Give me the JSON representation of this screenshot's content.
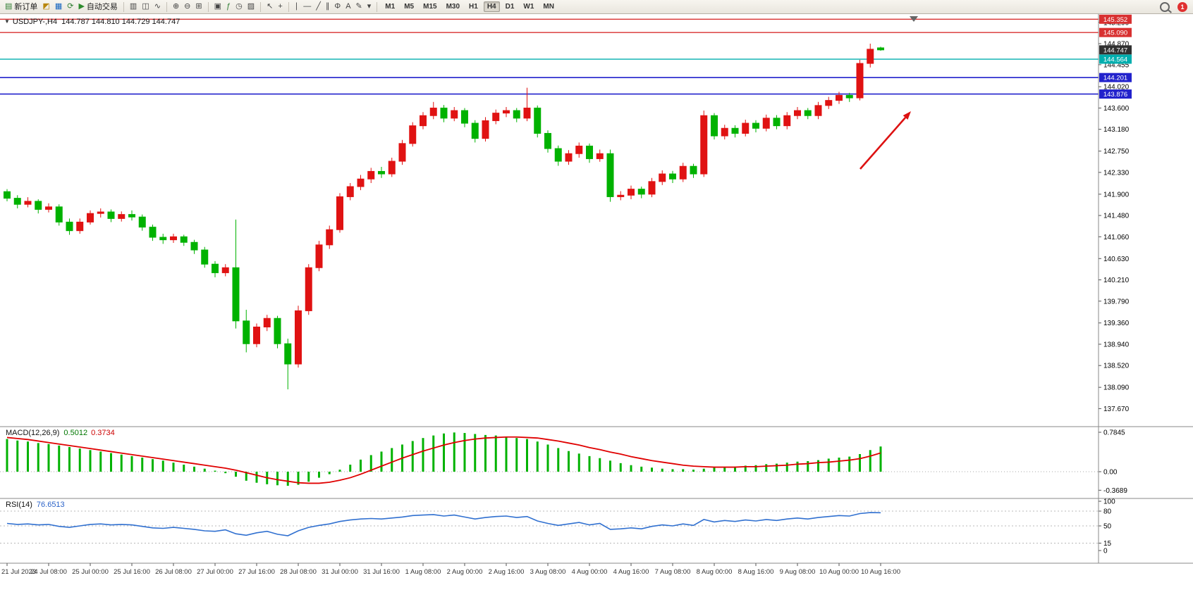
{
  "icons": {
    "collapse": "▼"
  },
  "toolbar": {
    "groups": [
      {
        "items": [
          {
            "name": "new-order-button",
            "glyph": "▤",
            "color": "#2e7d32",
            "label": "新订单"
          },
          {
            "name": "chart-window-icon",
            "glyph": "◩",
            "color": "#b8860b"
          },
          {
            "name": "market-watch-icon",
            "glyph": "▦",
            "color": "#1565c0"
          },
          {
            "name": "refresh-icon",
            "glyph": "⟳",
            "color": "#2e7d32"
          },
          {
            "name": "autotrading-button",
            "glyph": "▶",
            "color": "#2e8b2e",
            "label": "自动交易"
          }
        ]
      },
      {
        "items": [
          {
            "name": "bar-chart-icon",
            "glyph": "▥",
            "color": "#444"
          },
          {
            "name": "candlestick-chart-icon",
            "glyph": "◫",
            "color": "#444"
          },
          {
            "name": "line-chart-icon",
            "glyph": "∿",
            "color": "#444"
          }
        ]
      },
      {
        "items": [
          {
            "name": "zoom-in-icon",
            "glyph": "⊕",
            "color": "#444"
          },
          {
            "name": "zoom-out-icon",
            "glyph": "⊖",
            "color": "#444"
          },
          {
            "name": "tile-windows-icon",
            "glyph": "⊞",
            "color": "#444"
          }
        ]
      },
      {
        "items": [
          {
            "name": "new-chart-icon",
            "glyph": "▣",
            "color": "#444"
          },
          {
            "name": "indicators-icon",
            "glyph": "ƒ",
            "color": "#2e7d32"
          },
          {
            "name": "periods-icon",
            "glyph": "◷",
            "color": "#444"
          },
          {
            "name": "templates-icon",
            "glyph": "▨",
            "color": "#444"
          }
        ]
      },
      {
        "items": [
          {
            "name": "cursor-icon",
            "glyph": "↖",
            "color": "#444"
          },
          {
            "name": "crosshair-icon",
            "glyph": "+",
            "color": "#444"
          }
        ]
      },
      {
        "items": [
          {
            "name": "vertical-line-icon",
            "glyph": "∣",
            "color": "#444"
          },
          {
            "name": "horizontal-line-icon",
            "glyph": "―",
            "color": "#444"
          },
          {
            "name": "trendline-icon",
            "glyph": "╱",
            "color": "#444"
          },
          {
            "name": "channel-icon",
            "glyph": "∥",
            "color": "#444"
          },
          {
            "name": "fibonacci-icon",
            "glyph": "Φ",
            "color": "#444"
          },
          {
            "name": "text-icon",
            "glyph": "A",
            "color": "#444"
          },
          {
            "name": "arrows-icon",
            "glyph": "✎",
            "color": "#444"
          },
          {
            "name": "objects-dropdown-icon",
            "glyph": "▾",
            "color": "#444"
          }
        ]
      }
    ],
    "timeframes": {
      "items": [
        "M1",
        "M5",
        "M15",
        "M30",
        "H1",
        "H4",
        "D1",
        "W1",
        "MN"
      ],
      "active": "H4"
    },
    "right": {
      "search_name": "search-button",
      "badge_value": "1"
    }
  },
  "chart_data": {
    "type": "candlestick",
    "symbol_title": "USDJPY-,H4",
    "title_ohlc": "144.787 144.810 144.729 144.747",
    "colors": {
      "up": "#E01212",
      "down": "#00B200"
    },
    "y_ticks": [
      "145.290",
      "144.870",
      "144.455",
      "144.020",
      "143.600",
      "143.180",
      "142.750",
      "142.330",
      "141.900",
      "141.480",
      "141.060",
      "140.630",
      "140.210",
      "139.790",
      "139.360",
      "138.940",
      "138.520",
      "138.090",
      "137.670"
    ],
    "levels": [
      {
        "label": "145.352",
        "color": "#D83030",
        "width": 1.4
      },
      {
        "label": "145.090",
        "color": "#D83030",
        "width": 1.4
      },
      {
        "label": "144.564",
        "color": "#00AEAE",
        "width": 1.4
      },
      {
        "label": "144.201",
        "color": "#2222CC",
        "width": 1.7
      },
      {
        "label": "143.876",
        "color": "#2222CC",
        "width": 1.7
      }
    ],
    "current_price": {
      "label": "144.747",
      "bg": "#303030"
    },
    "arrow": {
      "from": [
        1220,
        240
      ],
      "to": [
        1292,
        158
      ],
      "color": "#DD1111"
    },
    "times": {
      "per_label_candles": 4,
      "labels": [
        "21 Jul 2023",
        "24 Jul 08:00",
        "25 Jul 00:00",
        "25 Jul 16:00",
        "26 Jul 08:00",
        "27 Jul 00:00",
        "27 Jul 16:00",
        "28 Jul 08:00",
        "31 Jul 00:00",
        "31 Jul 16:00",
        "1 Aug 08:00",
        "2 Aug 00:00",
        "2 Aug 16:00",
        "3 Aug 08:00",
        "4 Aug 00:00",
        "4 Aug 16:00",
        "7 Aug 08:00",
        "8 Aug 00:00",
        "8 Aug 16:00",
        "9 Aug 08:00",
        "10 Aug 00:00",
        "10 Aug 16:00"
      ]
    },
    "candles": [
      [
        141.95,
        142.0,
        141.76,
        141.82
      ],
      [
        141.82,
        141.88,
        141.62,
        141.7
      ],
      [
        141.7,
        141.84,
        141.64,
        141.76
      ],
      [
        141.76,
        141.8,
        141.52,
        141.6
      ],
      [
        141.6,
        141.72,
        141.54,
        141.65
      ],
      [
        141.65,
        141.7,
        141.28,
        141.35
      ],
      [
        141.35,
        141.42,
        141.1,
        141.18
      ],
      [
        141.18,
        141.42,
        141.12,
        141.35
      ],
      [
        141.35,
        141.58,
        141.3,
        141.52
      ],
      [
        141.52,
        141.62,
        141.44,
        141.55
      ],
      [
        141.55,
        141.6,
        141.35,
        141.42
      ],
      [
        141.42,
        141.56,
        141.36,
        141.5
      ],
      [
        141.5,
        141.58,
        141.38,
        141.45
      ],
      [
        141.45,
        141.5,
        141.18,
        141.25
      ],
      [
        141.25,
        141.3,
        140.98,
        141.05
      ],
      [
        141.05,
        141.12,
        140.92,
        141.0
      ],
      [
        141.0,
        141.12,
        140.94,
        141.06
      ],
      [
        141.06,
        141.1,
        140.88,
        140.95
      ],
      [
        140.95,
        141.0,
        140.72,
        140.8
      ],
      [
        140.8,
        140.86,
        140.45,
        140.52
      ],
      [
        140.52,
        140.58,
        140.26,
        140.35
      ],
      [
        140.35,
        140.52,
        140.28,
        140.45
      ],
      [
        140.45,
        141.4,
        139.25,
        139.4
      ],
      [
        139.4,
        139.62,
        138.78,
        138.95
      ],
      [
        138.95,
        139.35,
        138.88,
        139.28
      ],
      [
        139.28,
        139.52,
        139.2,
        139.45
      ],
      [
        139.45,
        139.5,
        138.86,
        138.95
      ],
      [
        138.95,
        139.05,
        138.05,
        138.55
      ],
      [
        138.55,
        139.7,
        138.48,
        139.6
      ],
      [
        139.6,
        140.52,
        139.52,
        140.45
      ],
      [
        140.45,
        140.98,
        140.38,
        140.9
      ],
      [
        140.9,
        141.28,
        140.82,
        141.2
      ],
      [
        141.2,
        141.92,
        141.14,
        141.85
      ],
      [
        141.85,
        142.12,
        141.78,
        142.05
      ],
      [
        142.05,
        142.28,
        141.98,
        142.2
      ],
      [
        142.2,
        142.42,
        142.12,
        142.35
      ],
      [
        142.35,
        142.44,
        142.22,
        142.3
      ],
      [
        142.3,
        142.62,
        142.24,
        142.55
      ],
      [
        142.55,
        142.97,
        142.48,
        142.9
      ],
      [
        142.9,
        143.32,
        142.84,
        143.25
      ],
      [
        143.25,
        143.52,
        143.18,
        143.45
      ],
      [
        143.45,
        143.72,
        143.38,
        143.6
      ],
      [
        143.6,
        143.66,
        143.32,
        143.4
      ],
      [
        143.4,
        143.62,
        143.34,
        143.55
      ],
      [
        143.55,
        143.6,
        143.22,
        143.3
      ],
      [
        143.3,
        143.36,
        142.92,
        143.0
      ],
      [
        143.0,
        143.42,
        142.94,
        143.35
      ],
      [
        143.35,
        143.57,
        143.28,
        143.5
      ],
      [
        143.5,
        143.62,
        143.42,
        143.55
      ],
      [
        143.55,
        143.6,
        143.32,
        143.4
      ],
      [
        143.4,
        144.0,
        143.34,
        143.6
      ],
      [
        143.6,
        143.65,
        143.02,
        143.1
      ],
      [
        143.1,
        143.16,
        142.72,
        142.8
      ],
      [
        142.8,
        142.86,
        142.46,
        142.55
      ],
      [
        142.55,
        142.77,
        142.48,
        142.7
      ],
      [
        142.7,
        142.92,
        142.62,
        142.85
      ],
      [
        142.85,
        142.9,
        142.52,
        142.6
      ],
      [
        142.6,
        142.78,
        142.54,
        142.7
      ],
      [
        142.7,
        142.78,
        141.75,
        141.85
      ],
      [
        141.85,
        141.96,
        141.78,
        141.88
      ],
      [
        141.88,
        142.07,
        141.8,
        142.0
      ],
      [
        142.0,
        142.05,
        141.82,
        141.9
      ],
      [
        141.9,
        142.22,
        141.84,
        142.15
      ],
      [
        142.15,
        142.37,
        142.08,
        142.3
      ],
      [
        142.3,
        142.36,
        142.12,
        142.2
      ],
      [
        142.2,
        142.52,
        142.14,
        142.45
      ],
      [
        142.45,
        142.5,
        142.22,
        142.3
      ],
      [
        142.3,
        143.55,
        142.24,
        143.45
      ],
      [
        143.45,
        143.5,
        142.98,
        143.05
      ],
      [
        143.05,
        143.27,
        142.98,
        143.2
      ],
      [
        143.2,
        143.26,
        143.02,
        143.1
      ],
      [
        143.1,
        143.37,
        143.04,
        143.3
      ],
      [
        143.3,
        143.36,
        143.12,
        143.2
      ],
      [
        143.2,
        143.47,
        143.14,
        143.4
      ],
      [
        143.4,
        143.46,
        143.18,
        143.25
      ],
      [
        143.25,
        143.52,
        143.18,
        143.45
      ],
      [
        143.45,
        143.62,
        143.38,
        143.55
      ],
      [
        143.55,
        143.6,
        143.38,
        143.45
      ],
      [
        143.45,
        143.72,
        143.38,
        143.65
      ],
      [
        143.65,
        143.82,
        143.58,
        143.75
      ],
      [
        143.75,
        143.92,
        143.68,
        143.85
      ],
      [
        143.85,
        143.9,
        143.72,
        143.8
      ],
      [
        143.8,
        144.55,
        143.75,
        144.48
      ],
      [
        144.48,
        144.87,
        144.4,
        144.76
      ],
      [
        144.787,
        144.81,
        144.729,
        144.747
      ]
    ],
    "macd": {
      "label": "MACD(12,26,9)",
      "main_value": "0.5012",
      "signal_value": "0.3734",
      "scale": [
        "0.7845",
        "0.00",
        "-0.3689"
      ],
      "colors": {
        "hist": "#00B200",
        "signal": "#E00000"
      },
      "histogram": [
        0.65,
        0.62,
        0.6,
        0.57,
        0.55,
        0.52,
        0.49,
        0.46,
        0.43,
        0.4,
        0.37,
        0.34,
        0.31,
        0.28,
        0.25,
        0.22,
        0.18,
        0.14,
        0.1,
        0.06,
        0.02,
        -0.03,
        -0.1,
        -0.18,
        -0.22,
        -0.25,
        -0.27,
        -0.28,
        -0.26,
        -0.2,
        -0.12,
        -0.05,
        0.04,
        0.14,
        0.24,
        0.33,
        0.4,
        0.47,
        0.54,
        0.61,
        0.67,
        0.72,
        0.76,
        0.78,
        0.77,
        0.75,
        0.73,
        0.72,
        0.7,
        0.67,
        0.65,
        0.6,
        0.54,
        0.47,
        0.41,
        0.36,
        0.31,
        0.27,
        0.22,
        0.17,
        0.13,
        0.1,
        0.08,
        0.06,
        0.05,
        0.05,
        0.04,
        0.06,
        0.08,
        0.09,
        0.1,
        0.12,
        0.13,
        0.15,
        0.16,
        0.18,
        0.2,
        0.21,
        0.23,
        0.26,
        0.28,
        0.3,
        0.35,
        0.43,
        0.5012
      ],
      "signal": [
        0.68,
        0.66,
        0.64,
        0.61,
        0.58,
        0.55,
        0.52,
        0.49,
        0.46,
        0.43,
        0.4,
        0.37,
        0.34,
        0.31,
        0.28,
        0.25,
        0.22,
        0.19,
        0.16,
        0.13,
        0.1,
        0.07,
        0.03,
        -0.02,
        -0.07,
        -0.12,
        -0.16,
        -0.19,
        -0.22,
        -0.23,
        -0.23,
        -0.21,
        -0.17,
        -0.12,
        -0.05,
        0.03,
        0.11,
        0.19,
        0.27,
        0.34,
        0.41,
        0.47,
        0.53,
        0.58,
        0.62,
        0.65,
        0.67,
        0.68,
        0.69,
        0.69,
        0.68,
        0.67,
        0.64,
        0.61,
        0.57,
        0.53,
        0.48,
        0.44,
        0.39,
        0.35,
        0.3,
        0.26,
        0.22,
        0.19,
        0.16,
        0.13,
        0.11,
        0.1,
        0.09,
        0.09,
        0.09,
        0.1,
        0.1,
        0.11,
        0.12,
        0.13,
        0.15,
        0.16,
        0.18,
        0.19,
        0.21,
        0.23,
        0.26,
        0.31,
        0.3734
      ]
    },
    "rsi": {
      "label": "RSI(14)",
      "value": "76.6513",
      "scale": [
        "100",
        "80",
        "50",
        "15",
        "0"
      ],
      "levels": [
        80,
        50,
        15
      ],
      "color": "#3070D0",
      "values": [
        55,
        53,
        54,
        52,
        53,
        49,
        47,
        50,
        53,
        54,
        52,
        53,
        52,
        49,
        46,
        45,
        47,
        45,
        43,
        40,
        39,
        42,
        34,
        31,
        36,
        39,
        33,
        30,
        40,
        47,
        51,
        54,
        59,
        62,
        64,
        65,
        64,
        66,
        68,
        71,
        72,
        73,
        70,
        72,
        68,
        64,
        67,
        69,
        70,
        67,
        69,
        60,
        55,
        51,
        54,
        57,
        52,
        55,
        43,
        44,
        46,
        44,
        49,
        52,
        50,
        54,
        51,
        63,
        58,
        61,
        59,
        62,
        60,
        63,
        61,
        64,
        66,
        64,
        67,
        69,
        71,
        70,
        75,
        77,
        76.65
      ]
    }
  }
}
